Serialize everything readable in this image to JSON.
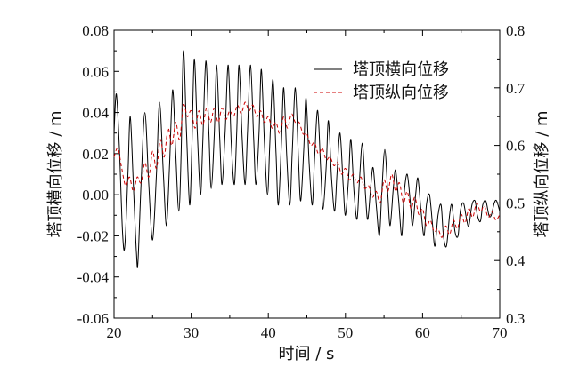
{
  "chart_data": {
    "type": "line",
    "xlabel": "时间 / s",
    "ylabel_left": "塔顶横向位移 / m",
    "ylabel_right": "塔顶纵向位移 / m",
    "xlim": [
      20,
      70
    ],
    "ylim_left": [
      -0.06,
      0.08
    ],
    "ylim_right": [
      0.3,
      0.8
    ],
    "x_ticks": [
      "20",
      "30",
      "40",
      "50",
      "60",
      "70"
    ],
    "y_left_ticks": [
      "0.08",
      "0.06",
      "0.04",
      "0.02",
      "0.00",
      "-0.02",
      "-0.04",
      "-0.06"
    ],
    "y_right_ticks": [
      "0.8",
      "0.7",
      "0.6",
      "0.5",
      "0.4",
      "0.3"
    ],
    "legend_position": "top-right",
    "grid": false,
    "series": [
      {
        "name": "塔顶横向位移",
        "axis": "left",
        "color": "#000000",
        "style": "solid",
        "points": [
          [
            20.0,
            0.03
          ],
          [
            20.3,
            0.049
          ],
          [
            20.7,
            0.022
          ],
          [
            21.1,
            -0.018
          ],
          [
            21.4,
            -0.025
          ],
          [
            21.8,
            0.01
          ],
          [
            22.1,
            0.038
          ],
          [
            22.5,
            0.005
          ],
          [
            22.9,
            -0.028
          ],
          [
            23.1,
            -0.033
          ],
          [
            23.5,
            0.005
          ],
          [
            24.0,
            0.04
          ],
          [
            24.5,
            0.005
          ],
          [
            25.0,
            -0.022
          ],
          [
            25.5,
            0.01
          ],
          [
            25.9,
            0.045
          ],
          [
            26.4,
            0.01
          ],
          [
            26.8,
            -0.015
          ],
          [
            27.2,
            0.015
          ],
          [
            27.6,
            0.051
          ],
          [
            28.0,
            0.02
          ],
          [
            28.4,
            -0.008
          ],
          [
            28.7,
            0.02
          ],
          [
            29.0,
            0.07
          ],
          [
            29.4,
            0.03
          ],
          [
            29.8,
            -0.005
          ],
          [
            30.1,
            0.025
          ],
          [
            30.4,
            0.066
          ],
          [
            30.8,
            0.03
          ],
          [
            31.2,
            0.0
          ],
          [
            31.5,
            0.025
          ],
          [
            31.9,
            0.065
          ],
          [
            32.3,
            0.03
          ],
          [
            32.6,
            0.003
          ],
          [
            33.0,
            0.03
          ],
          [
            33.3,
            0.063
          ],
          [
            33.7,
            0.028
          ],
          [
            34.0,
            0.005
          ],
          [
            34.4,
            0.03
          ],
          [
            34.8,
            0.063
          ],
          [
            35.2,
            0.025
          ],
          [
            35.6,
            0.005
          ],
          [
            35.9,
            0.03
          ],
          [
            36.2,
            0.063
          ],
          [
            36.6,
            0.028
          ],
          [
            37.0,
            0.005
          ],
          [
            37.3,
            0.03
          ],
          [
            37.7,
            0.063
          ],
          [
            38.1,
            0.028
          ],
          [
            38.4,
            0.005
          ],
          [
            38.8,
            0.03
          ],
          [
            39.1,
            0.061
          ],
          [
            39.5,
            0.025
          ],
          [
            39.9,
            0.0
          ],
          [
            40.2,
            0.025
          ],
          [
            40.6,
            0.056
          ],
          [
            41.0,
            0.02
          ],
          [
            41.3,
            -0.005
          ],
          [
            41.7,
            0.025
          ],
          [
            42.0,
            0.052
          ],
          [
            42.4,
            0.018
          ],
          [
            42.8,
            -0.005
          ],
          [
            43.1,
            0.02
          ],
          [
            43.5,
            0.052
          ],
          [
            43.9,
            0.018
          ],
          [
            44.2,
            -0.003
          ],
          [
            44.6,
            0.022
          ],
          [
            44.9,
            0.047
          ],
          [
            45.3,
            0.015
          ],
          [
            45.7,
            -0.005
          ],
          [
            46.0,
            0.018
          ],
          [
            46.4,
            0.041
          ],
          [
            46.8,
            0.012
          ],
          [
            47.1,
            -0.007
          ],
          [
            47.5,
            0.013
          ],
          [
            47.8,
            0.036
          ],
          [
            48.2,
            0.008
          ],
          [
            48.6,
            -0.008
          ],
          [
            48.9,
            0.01
          ],
          [
            49.3,
            0.03
          ],
          [
            49.7,
            0.005
          ],
          [
            50.0,
            -0.01
          ],
          [
            50.4,
            0.008
          ],
          [
            50.7,
            0.027
          ],
          [
            51.1,
            0.002
          ],
          [
            51.5,
            -0.012
          ],
          [
            51.8,
            0.006
          ],
          [
            52.2,
            0.025
          ],
          [
            52.6,
            0.0
          ],
          [
            52.9,
            -0.012
          ],
          [
            53.3,
            0.005
          ],
          [
            53.6,
            0.013
          ],
          [
            54.0,
            -0.005
          ],
          [
            54.4,
            -0.02
          ],
          [
            54.7,
            0.0
          ],
          [
            55.1,
            0.022
          ],
          [
            55.5,
            0.0
          ],
          [
            55.8,
            -0.015
          ],
          [
            56.2,
            0.003
          ],
          [
            56.5,
            0.012
          ],
          [
            56.9,
            -0.003
          ],
          [
            57.3,
            -0.02
          ],
          [
            57.6,
            0.0
          ],
          [
            58.0,
            0.01
          ],
          [
            58.4,
            -0.003
          ],
          [
            58.7,
            -0.015
          ],
          [
            59.1,
            0.0
          ],
          [
            59.4,
            0.008
          ],
          [
            59.8,
            -0.008
          ],
          [
            60.2,
            -0.02
          ],
          [
            60.5,
            -0.005
          ],
          [
            60.9,
            0.0
          ],
          [
            61.3,
            -0.015
          ],
          [
            61.6,
            -0.025
          ],
          [
            62.0,
            -0.01
          ],
          [
            62.4,
            -0.005
          ],
          [
            62.7,
            -0.02
          ],
          [
            63.1,
            -0.025
          ],
          [
            63.5,
            -0.01
          ],
          [
            63.8,
            -0.005
          ],
          [
            64.2,
            -0.018
          ],
          [
            64.6,
            -0.02
          ],
          [
            64.9,
            -0.008
          ],
          [
            65.3,
            -0.004
          ],
          [
            65.7,
            -0.012
          ],
          [
            66.0,
            -0.015
          ],
          [
            66.4,
            -0.005
          ],
          [
            66.8,
            -0.003
          ],
          [
            67.1,
            -0.01
          ],
          [
            67.5,
            -0.013
          ],
          [
            67.8,
            -0.005
          ],
          [
            68.2,
            -0.003
          ],
          [
            68.6,
            -0.01
          ],
          [
            68.9,
            -0.01
          ],
          [
            69.3,
            -0.004
          ],
          [
            69.6,
            -0.003
          ],
          [
            70.0,
            -0.008
          ]
        ]
      },
      {
        "name": "塔顶纵向位移",
        "axis": "right",
        "color": "#cc0000",
        "style": "dashed",
        "points": [
          [
            20.0,
            0.58
          ],
          [
            20.5,
            0.595
          ],
          [
            21.0,
            0.56
          ],
          [
            21.5,
            0.53
          ],
          [
            22.0,
            0.545
          ],
          [
            22.5,
            0.52
          ],
          [
            23.0,
            0.545
          ],
          [
            23.5,
            0.535
          ],
          [
            24.0,
            0.57
          ],
          [
            24.5,
            0.545
          ],
          [
            25.0,
            0.59
          ],
          [
            25.5,
            0.56
          ],
          [
            26.0,
            0.61
          ],
          [
            26.5,
            0.58
          ],
          [
            27.0,
            0.63
          ],
          [
            27.5,
            0.6
          ],
          [
            28.0,
            0.64
          ],
          [
            28.5,
            0.61
          ],
          [
            29.0,
            0.67
          ],
          [
            29.5,
            0.65
          ],
          [
            30.0,
            0.66
          ],
          [
            30.5,
            0.63
          ],
          [
            31.0,
            0.66
          ],
          [
            31.5,
            0.635
          ],
          [
            32.0,
            0.665
          ],
          [
            32.5,
            0.64
          ],
          [
            33.0,
            0.665
          ],
          [
            33.5,
            0.64
          ],
          [
            34.0,
            0.665
          ],
          [
            34.5,
            0.645
          ],
          [
            35.0,
            0.66
          ],
          [
            35.5,
            0.65
          ],
          [
            36.0,
            0.67
          ],
          [
            36.5,
            0.655
          ],
          [
            37.0,
            0.675
          ],
          [
            37.5,
            0.66
          ],
          [
            38.0,
            0.67
          ],
          [
            38.5,
            0.65
          ],
          [
            39.0,
            0.66
          ],
          [
            39.5,
            0.64
          ],
          [
            40.0,
            0.65
          ],
          [
            40.5,
            0.63
          ],
          [
            41.0,
            0.64
          ],
          [
            41.5,
            0.62
          ],
          [
            42.0,
            0.65
          ],
          [
            42.5,
            0.63
          ],
          [
            43.0,
            0.655
          ],
          [
            43.5,
            0.64
          ],
          [
            44.0,
            0.64
          ],
          [
            44.5,
            0.62
          ],
          [
            45.0,
            0.62
          ],
          [
            45.5,
            0.6
          ],
          [
            46.0,
            0.605
          ],
          [
            46.5,
            0.585
          ],
          [
            47.0,
            0.595
          ],
          [
            47.5,
            0.575
          ],
          [
            48.0,
            0.58
          ],
          [
            48.5,
            0.565
          ],
          [
            49.0,
            0.57
          ],
          [
            49.5,
            0.55
          ],
          [
            50.0,
            0.56
          ],
          [
            50.5,
            0.54
          ],
          [
            51.0,
            0.55
          ],
          [
            51.5,
            0.535
          ],
          [
            52.0,
            0.545
          ],
          [
            52.5,
            0.525
          ],
          [
            53.0,
            0.53
          ],
          [
            53.5,
            0.51
          ],
          [
            54.0,
            0.52
          ],
          [
            54.5,
            0.5
          ],
          [
            55.0,
            0.54
          ],
          [
            55.5,
            0.52
          ],
          [
            56.0,
            0.55
          ],
          [
            56.5,
            0.52
          ],
          [
            57.0,
            0.535
          ],
          [
            57.5,
            0.5
          ],
          [
            58.0,
            0.52
          ],
          [
            58.5,
            0.49
          ],
          [
            59.0,
            0.51
          ],
          [
            59.5,
            0.48
          ],
          [
            60.0,
            0.49
          ],
          [
            60.5,
            0.46
          ],
          [
            61.0,
            0.47
          ],
          [
            61.5,
            0.45
          ],
          [
            62.0,
            0.455
          ],
          [
            62.5,
            0.44
          ],
          [
            63.0,
            0.46
          ],
          [
            63.5,
            0.445
          ],
          [
            64.0,
            0.47
          ],
          [
            64.5,
            0.455
          ],
          [
            65.0,
            0.48
          ],
          [
            65.5,
            0.465
          ],
          [
            66.0,
            0.49
          ],
          [
            66.5,
            0.475
          ],
          [
            67.0,
            0.5
          ],
          [
            67.5,
            0.485
          ],
          [
            68.0,
            0.495
          ],
          [
            68.5,
            0.475
          ],
          [
            69.0,
            0.485
          ],
          [
            69.5,
            0.47
          ],
          [
            70.0,
            0.48
          ]
        ]
      }
    ]
  }
}
